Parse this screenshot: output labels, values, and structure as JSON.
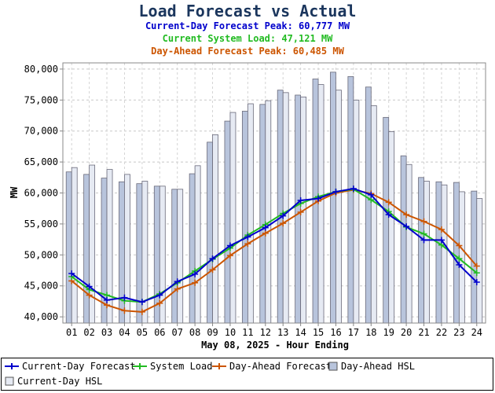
{
  "header": {
    "title": "Load Forecast vs Actual",
    "subtitle_current_day": "Current-Day Forecast Peak:  60,777 MW",
    "subtitle_system_load": "Current System Load:  47,121 MW",
    "subtitle_day_ahead": "Day-Ahead Forecast Peak:  60,485 MW"
  },
  "colors": {
    "title": "#1b365d",
    "current_day": "#0000cc",
    "system_load": "#22bb22",
    "day_ahead": "#cc5500",
    "day_ahead_hsl": "#b8c4dc",
    "current_day_hsl": "#e6eaf3"
  },
  "chart_data": {
    "type": "bar",
    "xlabel": "May 08, 2025 - Hour Ending",
    "ylabel": "MW",
    "ylim": [
      39000,
      81000
    ],
    "yticks": [
      40000,
      45000,
      50000,
      55000,
      60000,
      65000,
      70000,
      75000,
      80000
    ],
    "ytick_labels": [
      "40,000",
      "45,000",
      "50,000",
      "55,000",
      "60,000",
      "65,000",
      "70,000",
      "75,000",
      "80,000"
    ],
    "categories": [
      "01",
      "02",
      "03",
      "04",
      "05",
      "06",
      "07",
      "08",
      "09",
      "10",
      "11",
      "12",
      "13",
      "14",
      "15",
      "16",
      "17",
      "18",
      "19",
      "20",
      "21",
      "22",
      "23",
      "24"
    ],
    "grid": true,
    "legend_position": "bottom",
    "bar_series": [
      {
        "name": "Day-Ahead HSL",
        "values": [
          63400,
          63000,
          62400,
          61800,
          61500,
          61100,
          60600,
          63100,
          68200,
          71600,
          73200,
          74300,
          76600,
          75800,
          78400,
          79500,
          78800,
          77100,
          72200,
          66000,
          62500,
          61800,
          61700,
          60300
        ]
      },
      {
        "name": "Current-Day HSL",
        "values": [
          64100,
          64500,
          63800,
          63000,
          61900,
          61100,
          60600,
          64400,
          69400,
          73000,
          74400,
          74900,
          76200,
          75500,
          77500,
          76600,
          75000,
          74100,
          69900,
          64600,
          61900,
          61300,
          60200,
          59100
        ]
      }
    ],
    "line_series": [
      {
        "name": "Current-Day Forecast",
        "values": [
          47000,
          44900,
          42700,
          43100,
          42400,
          43500,
          45700,
          46900,
          49400,
          51500,
          52900,
          54400,
          56300,
          58800,
          59100,
          60200,
          60700,
          59700,
          56500,
          54600,
          52400,
          52400,
          48400,
          45600
        ]
      },
      {
        "name": "System Load",
        "values": [
          46500,
          44400,
          43500,
          42600,
          42400,
          43700,
          45500,
          47400,
          49300,
          51100,
          53200,
          54900,
          56700,
          58300,
          59400,
          60200,
          60600,
          58900,
          57000,
          54500,
          53400,
          51600,
          49400,
          47100
        ]
      },
      {
        "name": "Day-Ahead Forecast",
        "values": [
          45800,
          43500,
          41900,
          41000,
          40800,
          42200,
          44500,
          45500,
          47600,
          49900,
          51800,
          53500,
          55100,
          56900,
          58700,
          60000,
          60500,
          59900,
          58500,
          56500,
          55400,
          54100,
          51500,
          48200
        ]
      }
    ]
  }
}
